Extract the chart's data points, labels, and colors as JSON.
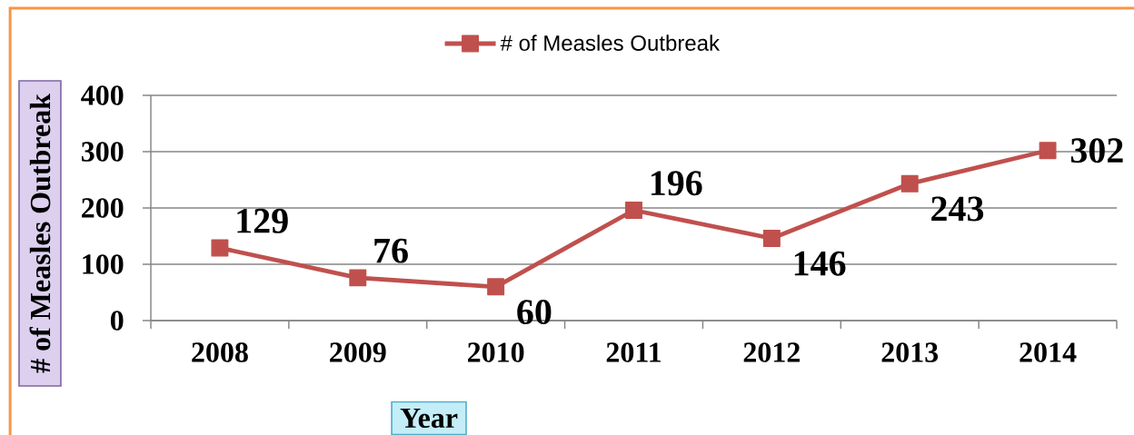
{
  "chart_data": {
    "type": "line",
    "xlabel": "Year",
    "ylabel": "# of Measles Outbreak",
    "categories": [
      "2008",
      "2009",
      "2010",
      "2011",
      "2012",
      "2013",
      "2014"
    ],
    "series": [
      {
        "name": "# of Measles Outbreak",
        "color": "#c0504d",
        "values": [
          129,
          76,
          60,
          196,
          146,
          243,
          302
        ]
      }
    ],
    "ylim": [
      0,
      400
    ],
    "yticks": [
      0,
      100,
      200,
      300,
      400
    ],
    "grid": "y",
    "legend": "top",
    "marker": "square",
    "line_style": "solid",
    "data_labels": true
  }
}
